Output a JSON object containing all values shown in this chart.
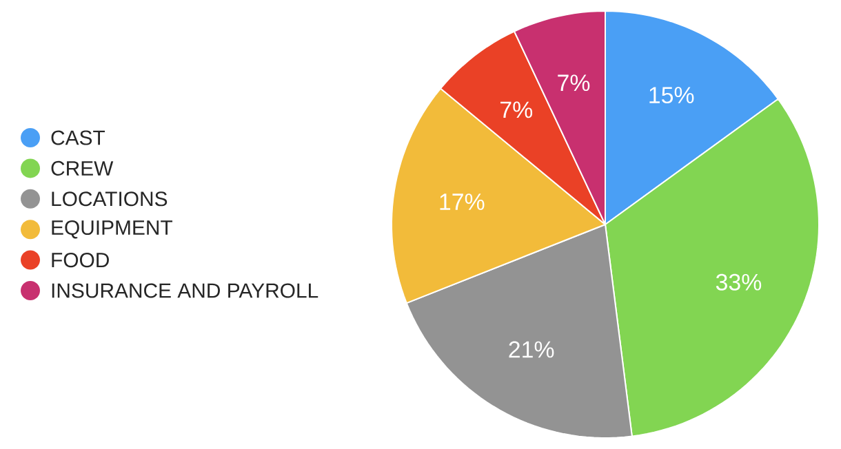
{
  "chart_data": {
    "type": "pie",
    "categories": [
      "CAST",
      "CREW",
      "LOCATIONS",
      "EQUIPMENT",
      "FOOD",
      "INSURANCE AND PAYROLL"
    ],
    "values": [
      15,
      33,
      21,
      17,
      7,
      7
    ],
    "value_labels": [
      "15%",
      "33%",
      "21%",
      "17%",
      "7%",
      "7%"
    ],
    "colors": [
      "#4a9ff5",
      "#82d552",
      "#939393",
      "#f2bb3a",
      "#ea4126",
      "#c8306f"
    ],
    "legend": "left"
  }
}
